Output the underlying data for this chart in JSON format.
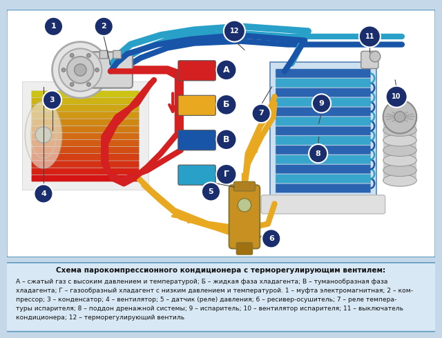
{
  "bg_outer": "#c5d8ea",
  "bg_diagram": "#ffffff",
  "bg_caption": "#d8e8f4",
  "border_color": "#5a9aba",
  "figsize": [
    6.4,
    4.9
  ],
  "dpi": 100,
  "title_text": "Схема парокомпрессионного кондиционера с терморегулирующим вентилем:",
  "caption_text": "А – сжатый газ с высоким давлением и температурой; Б – жидкая фаза хладагента; В – туманообразная фаза\nхладагента; Г – газообразный хладагент с низким давлением и температурой. 1 – муфта электромагнитная; 2 – ком-\nпрессор; 3 – конденсатор; 4 – вентилятор; 5 – датчик (реле) давления; 6 – ресивер-осушитель; 7 – реле темпера-\nтуры испарителя; 8 – поддон дренажной системы; 9 – испаритель; 10 – вентилятор испарителя; 11 – выключатель\nкондиционера; 12 – терморегулирующий вентиль",
  "node_bg": "#1a2e6e",
  "legend_colors": [
    "#d42020",
    "#e8a820",
    "#1855a8",
    "#28a0c8"
  ],
  "legend_labels": [
    "А",
    "Б",
    "В",
    "Г"
  ],
  "pipe_red": "#d42020",
  "pipe_orange": "#e8a820",
  "pipe_dblue": "#1855a8",
  "pipe_lblue": "#28a0c8",
  "pipe_lw": 4.0,
  "arrow_ms": 14
}
